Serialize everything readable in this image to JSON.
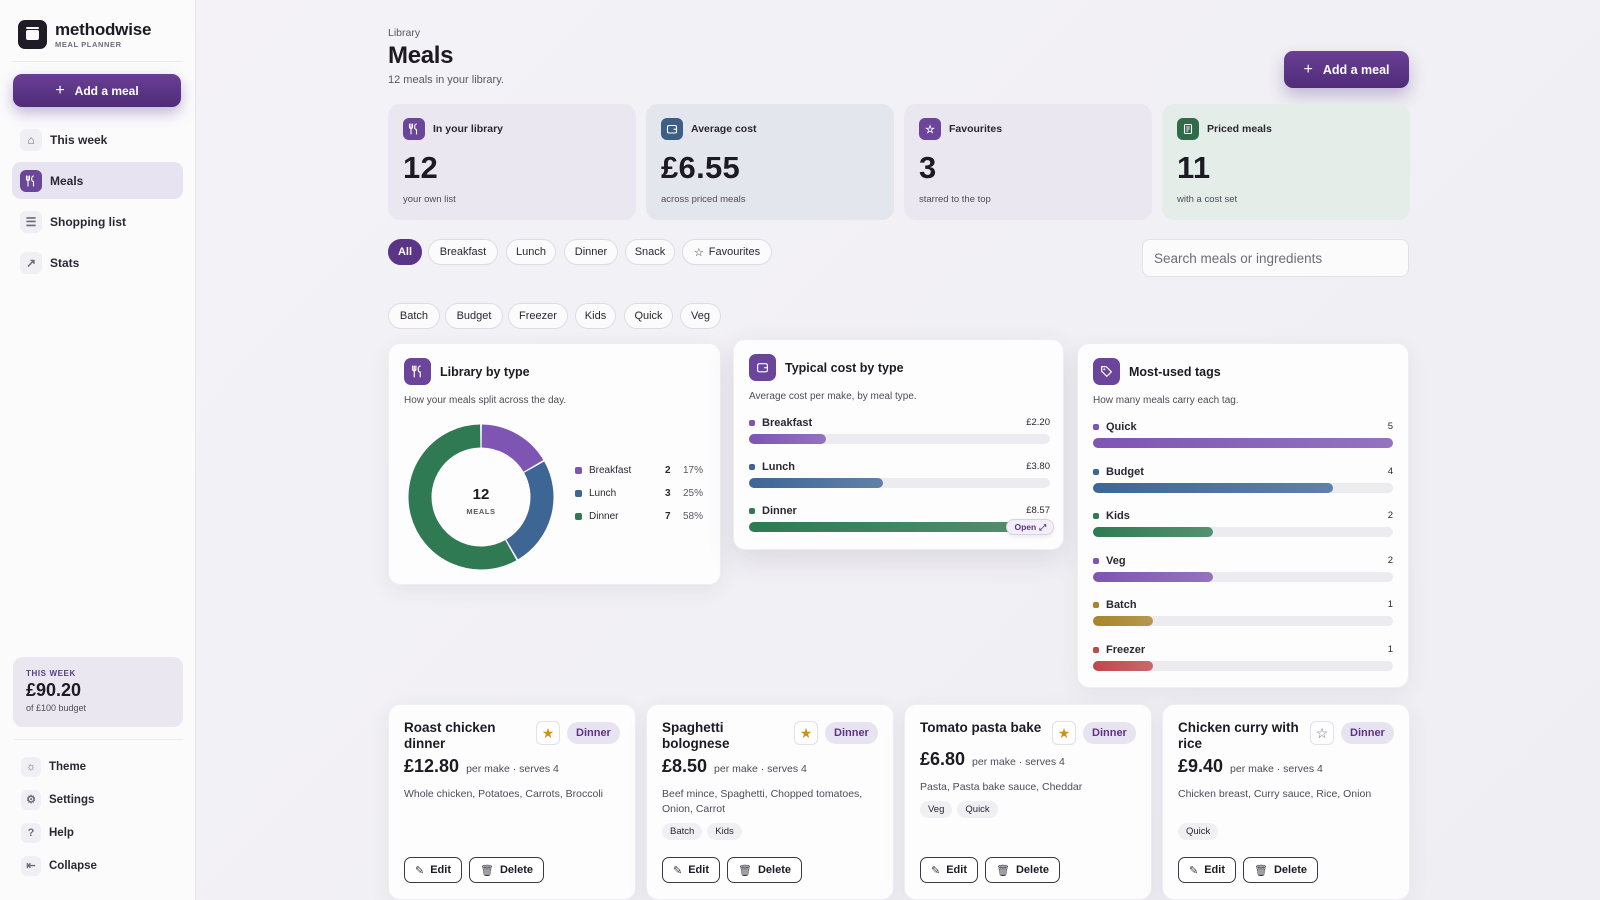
{
  "brand": {
    "name": "methodwise",
    "sub": "MEAL PLANNER"
  },
  "sidebar": {
    "add_label": "Add a meal",
    "nav": [
      {
        "label": "This week",
        "icon": "home-icon"
      },
      {
        "label": "Meals",
        "icon": "utensils-icon"
      },
      {
        "label": "Shopping list",
        "icon": "list-icon"
      },
      {
        "label": "Stats",
        "icon": "trend-icon"
      }
    ],
    "week": {
      "label": "THIS WEEK",
      "value": "£90.20",
      "sub": "of £100 budget"
    },
    "bottom": [
      {
        "label": "Theme",
        "icon": "sun-icon"
      },
      {
        "label": "Settings",
        "icon": "gear-icon"
      },
      {
        "label": "Help",
        "icon": "help-icon"
      },
      {
        "label": "Collapse",
        "icon": "collapse-icon"
      }
    ]
  },
  "header": {
    "crumb": "Library",
    "title": "Meals",
    "subtitle": "12 meals in your library.",
    "add_label": "Add a meal"
  },
  "stats": [
    {
      "label": "In your library",
      "value": "12",
      "sub": "your own list",
      "icon": "utensils-icon",
      "color": "#6b4599",
      "bg": "#ebe7f1"
    },
    {
      "label": "Average cost",
      "value": "£6.55",
      "sub": "across priced meals",
      "icon": "wallet-icon",
      "color": "#3e5f85",
      "bg": "#e4e6ee"
    },
    {
      "label": "Favourites",
      "value": "3",
      "sub": "starred to the top",
      "icon": "star-icon",
      "color": "#6b4599",
      "bg": "#ebe7f1"
    },
    {
      "label": "Priced meals",
      "value": "11",
      "sub": "with a cost set",
      "icon": "receipt-icon",
      "color": "#2e6b4a",
      "bg": "#e4ede8"
    }
  ],
  "filters": {
    "types": [
      "All",
      "Breakfast",
      "Lunch",
      "Dinner",
      "Snack",
      "Favourites"
    ],
    "tags": [
      "Batch",
      "Budget",
      "Freezer",
      "Kids",
      "Quick",
      "Veg"
    ],
    "search_placeholder": "Search meals or ingredients"
  },
  "library_panel": {
    "title": "Library by type",
    "desc": "How your meals split across the day.",
    "center_value": "12",
    "center_label": "MEALS",
    "legend": [
      {
        "name": "Breakfast",
        "count": "2",
        "pct": "17%",
        "color": "#7e55b3"
      },
      {
        "name": "Lunch",
        "count": "3",
        "pct": "25%",
        "color": "#3e6695"
      },
      {
        "name": "Dinner",
        "count": "7",
        "pct": "58%",
        "color": "#2f7a52"
      }
    ]
  },
  "cost_panel": {
    "title": "Typical cost by type",
    "desc": "Average cost per make, by meal type.",
    "rows": [
      {
        "name": "Breakfast",
        "value": "£2.20",
        "fraction": 0.257,
        "color": "#7e55b3"
      },
      {
        "name": "Lunch",
        "value": "£3.80",
        "fraction": 0.444,
        "color": "#3e6695"
      },
      {
        "name": "Dinner",
        "value": "£8.57",
        "fraction": 1.0,
        "color": "#2f7a52"
      }
    ],
    "open_label": "Open"
  },
  "tags_panel": {
    "title": "Most-used tags",
    "desc": "How many meals carry each tag.",
    "rows": [
      {
        "name": "Quick",
        "value": "5",
        "fraction": 1.0,
        "color": "#7e55b3"
      },
      {
        "name": "Budget",
        "value": "4",
        "fraction": 0.8,
        "color": "#3e6695"
      },
      {
        "name": "Kids",
        "value": "2",
        "fraction": 0.4,
        "color": "#2f7a52"
      },
      {
        "name": "Veg",
        "value": "2",
        "fraction": 0.4,
        "color": "#7e55b3"
      },
      {
        "name": "Batch",
        "value": "1",
        "fraction": 0.2,
        "color": "#a8842a"
      },
      {
        "name": "Freezer",
        "value": "1",
        "fraction": 0.2,
        "color": "#c0474a"
      }
    ]
  },
  "meals": [
    {
      "title": "Roast chicken dinner",
      "fav": true,
      "type": "Dinner",
      "price": "£12.80",
      "meta": "per make · serves 4",
      "ingredients": "Whole chicken, Potatoes, Carrots, Broccoli",
      "tags": []
    },
    {
      "title": "Spaghetti bolognese",
      "fav": true,
      "type": "Dinner",
      "price": "£8.50",
      "meta": "per make · serves 4",
      "ingredients": "Beef mince, Spaghetti, Chopped tomatoes, Onion, Carrot",
      "tags": [
        "Batch",
        "Kids"
      ]
    },
    {
      "title": "Tomato pasta bake",
      "fav": true,
      "type": "Dinner",
      "price": "£6.80",
      "meta": "per make · serves 4",
      "ingredients": "Pasta, Pasta bake sauce, Cheddar",
      "tags": [
        "Veg",
        "Quick"
      ]
    },
    {
      "title": "Chicken curry with rice",
      "fav": false,
      "type": "Dinner",
      "price": "£9.40",
      "meta": "per make · serves 4",
      "ingredients": "Chicken breast, Curry sauce, Rice, Onion",
      "tags": [
        "Quick"
      ]
    }
  ],
  "actions": {
    "edit": "Edit",
    "delete": "Delete"
  }
}
